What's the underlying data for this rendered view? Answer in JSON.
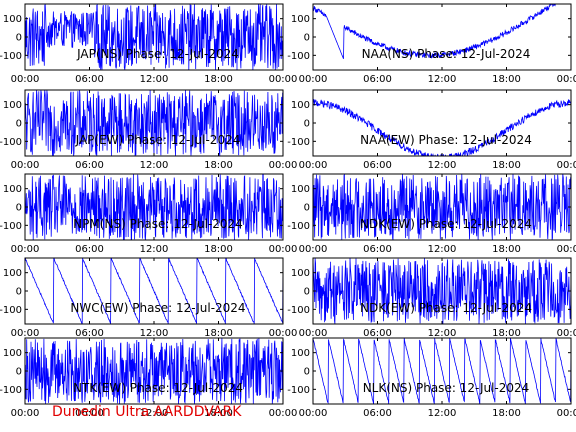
{
  "footer": "Dunedin Ultra AARDDVARK",
  "colors": {
    "trace": "#0000ff",
    "axes": "#000000",
    "footer": "#e00000"
  },
  "chart_data": [
    {
      "type": "line",
      "title": "JAP(NS) Phase: 12-Jul-2024",
      "pattern": "dense-blocks",
      "xticks": [
        "00:00",
        "06:00",
        "12:00",
        "18:00",
        "00:00"
      ],
      "yticks": [
        "100",
        "0",
        "-100"
      ],
      "ylim": [
        -180,
        180
      ]
    },
    {
      "type": "line",
      "title": "NAA(NS) Phase: 12-Jul-2024",
      "pattern": "smooth-arc",
      "xticks": [
        "00:00",
        "06:00",
        "12:00",
        "18:00",
        "00:00"
      ],
      "yticks": [
        "100",
        "0",
        "-100"
      ],
      "ylim": [
        -180,
        180
      ]
    },
    {
      "type": "line",
      "title": "JAP(EW) Phase: 12-Jul-2024",
      "pattern": "dense-blocks",
      "xticks": [
        "00:00",
        "06:00",
        "12:00",
        "18:00",
        "00:00"
      ],
      "yticks": [
        "100",
        "0",
        "-100"
      ],
      "ylim": [
        -180,
        180
      ]
    },
    {
      "type": "line",
      "title": "NAA(EW) Phase: 12-Jul-2024",
      "pattern": "smooth-arc-ew",
      "xticks": [
        "00:00",
        "06:00",
        "12:00",
        "18:00",
        "00:00"
      ],
      "yticks": [
        "100",
        "0",
        "-100"
      ],
      "ylim": [
        -180,
        180
      ]
    },
    {
      "type": "line",
      "title": "NPM(NS) Phase: 12-Jul-2024",
      "pattern": "noisy",
      "xticks": [
        "00:00",
        "06:00",
        "12:00",
        "18:00",
        "00:00"
      ],
      "yticks": [
        "100",
        "0",
        "-100"
      ],
      "ylim": [
        -180,
        180
      ]
    },
    {
      "type": "line",
      "title": "NDK(EW) Phase: 12-Jul-2024",
      "pattern": "noisy",
      "xticks": [
        "00:00",
        "06:00",
        "12:00",
        "18:00",
        "00:00"
      ],
      "yticks": [
        "100",
        "0",
        "-100"
      ],
      "ylim": [
        -180,
        180
      ]
    },
    {
      "type": "line",
      "title": "NWC(EW) Phase: 12-Jul-2024",
      "pattern": "sawtooth-slow",
      "xticks": [
        "00:00",
        "06:00",
        "12:00",
        "18:00",
        "00:00"
      ],
      "yticks": [
        "100",
        "0",
        "-100"
      ],
      "ylim": [
        -180,
        180
      ]
    },
    {
      "type": "line",
      "title": "NDK(EW) Phase: 12-Jul-2024",
      "pattern": "noisy",
      "xticks": [
        "00:00",
        "06:00",
        "12:00",
        "18:00",
        "00:00"
      ],
      "yticks": [
        "100",
        "0",
        "-100"
      ],
      "ylim": [
        -180,
        180
      ]
    },
    {
      "type": "line",
      "title": "NTK(EW) Phase: 12-Jul-2024",
      "pattern": "dense-blocks",
      "xticks": [
        "00:00",
        "06:00",
        "12:00",
        "18:00",
        "00:00"
      ],
      "yticks": [
        "100",
        "0",
        "-100"
      ],
      "ylim": [
        -180,
        180
      ]
    },
    {
      "type": "line",
      "title": "NLK(NS) Phase: 12-Jul-2024",
      "pattern": "sawtooth-fast",
      "xticks": [
        "00:00",
        "06:00",
        "12:00",
        "18:00",
        "00:00"
      ],
      "yticks": [
        "100",
        "0",
        "-100"
      ],
      "ylim": [
        -180,
        180
      ]
    }
  ]
}
